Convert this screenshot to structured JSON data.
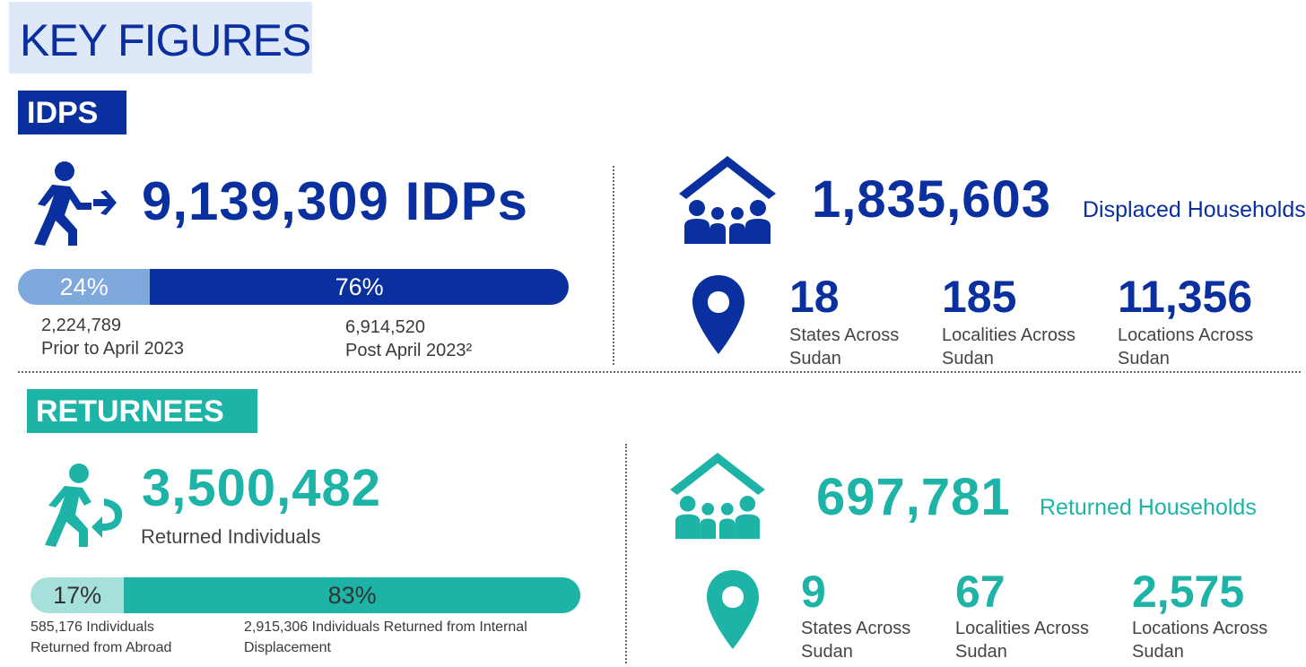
{
  "title": "KEY FIGURES",
  "idps": {
    "tag": "IDPS",
    "total": "9,139,309 IDPs",
    "bar": {
      "left_pct_label": "24%",
      "right_pct_label": "76%",
      "left_fraction": 0.24,
      "right_fraction": 0.76
    },
    "prior_value": "2,224,789",
    "prior_label": "Prior to April 2023",
    "post_value": "6,914,520",
    "post_label": "Post April 2023²",
    "households_value": "1,835,603",
    "households_label": "Displaced Households",
    "stats": [
      {
        "value": "18",
        "label1": "States Across",
        "label2": "Sudan"
      },
      {
        "value": "185",
        "label1": "Localities Across",
        "label2": "Sudan"
      },
      {
        "value": "11,356",
        "label1": "Locations Across",
        "label2": "Sudan"
      }
    ]
  },
  "returnees": {
    "tag": "RETURNEES",
    "total": "3,500,482",
    "total_label": "Returned Individuals",
    "bar": {
      "left_pct_label": "17%",
      "right_pct_label": "83%",
      "left_fraction": 0.17,
      "right_fraction": 0.83
    },
    "abroad_line1": "585,176 Individuals",
    "abroad_line2": "Returned from Abroad",
    "internal_line1": "2,915,306 Individuals Returned from Internal",
    "internal_line2": "Displacement",
    "households_value": "697,781",
    "households_label": "Returned Households",
    "stats": [
      {
        "value": "9",
        "label1": "States Across",
        "label2": "Sudan"
      },
      {
        "value": "67",
        "label1": "Localities Across",
        "label2": "Sudan"
      },
      {
        "value": "2,575",
        "label1": "Locations Across",
        "label2": "Sudan"
      }
    ]
  },
  "colors": {
    "navy": "#0a2f9e",
    "navy_light": "#7fa8dc",
    "teal": "#1db3a6",
    "teal_light": "#a5e0da"
  },
  "icons": [
    "walking-person-arrow-icon",
    "family-house-icon",
    "location-pin-icon",
    "returning-person-icon"
  ]
}
